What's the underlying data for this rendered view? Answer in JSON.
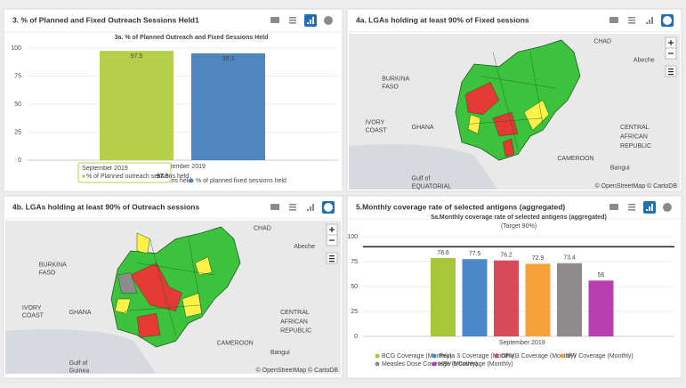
{
  "panels": [
    {
      "title": "3. % of Planned and Fixed Outreach Sessions Held1"
    },
    {
      "title": "4a. LGAs holding at least 90% of Fixed sessions"
    },
    {
      "title": "4b. LGAs holding at least 90% of Outreach sessions"
    },
    {
      "title": "5.Monthly coverage rate of selected antigens (aggregated)"
    }
  ],
  "chart_data": [
    {
      "type": "bar",
      "title": "3a. % of Planned Outreach and Fixed Sessions Held",
      "categories": [
        "September 2019"
      ],
      "series": [
        {
          "name": "% of Planned outreach sessions held",
          "color": "#b5cf4b",
          "values": [
            97.5
          ]
        },
        {
          "name": "% of planned fixed sessions held",
          "color": "#4f86c0",
          "values": [
            95.3
          ]
        }
      ],
      "ylim": [
        0,
        100
      ],
      "yticks": [
        0,
        25,
        50,
        75,
        100
      ],
      "tooltip": {
        "title": "September 2019",
        "label": "% of Planned outreach sessions held:"
      }
    },
    {
      "type": "bar",
      "title": "5a.Monthly coverage rate of selected antigens (aggregated)",
      "subtitle": "(Target 90%)",
      "categories": [
        "September 2019"
      ],
      "series": [
        {
          "name": "BCG Coverage (Monthly)",
          "color": "#a8c639",
          "values": [
            78.6
          ]
        },
        {
          "name": "Penta 3 Coverage (Monthly)",
          "color": "#4a88c9",
          "values": [
            77.5
          ]
        },
        {
          "name": "OPV 3 Coverage (Monthly)",
          "color": "#d84a58",
          "values": [
            76.2
          ]
        },
        {
          "name": "IPV Coverage (Monthly)",
          "color": "#f5a33a",
          "values": [
            72.9
          ]
        },
        {
          "name": "Measles Dose Coverage (Monthly)",
          "color": "#8f8a8c",
          "values": [
            73.4
          ]
        },
        {
          "name": "HBV 0 Coverage (Monthly)",
          "color": "#b640b0",
          "values": [
            56
          ]
        }
      ],
      "ylim": [
        0,
        100
      ],
      "yticks": [
        0,
        25,
        50,
        75,
        100
      ],
      "target": 90
    }
  ],
  "maps": [
    {
      "labels": [
        "CHAD",
        "Abeche",
        "BURKINA",
        "FASO",
        "IVORY",
        "COAST",
        "GHANA",
        "CAMEROON",
        "CENTRAL",
        "AFRICAN",
        "REPUBLIC",
        "Bangui",
        "Gulf of",
        "EQUATORIAL"
      ],
      "attribution": "© OpenStreetMap © CartoDB"
    },
    {
      "labels": [
        "CHAD",
        "Abeche",
        "BURKINA",
        "FASO",
        "IVORY",
        "COAST",
        "GHANA",
        "CAMEROON",
        "CENTRAL",
        "AFRICAN",
        "REPUBLIC",
        "Bangui",
        "Gulf of",
        "Guinea"
      ],
      "attribution": "© OpenStreetMap © CartoDB"
    }
  ]
}
